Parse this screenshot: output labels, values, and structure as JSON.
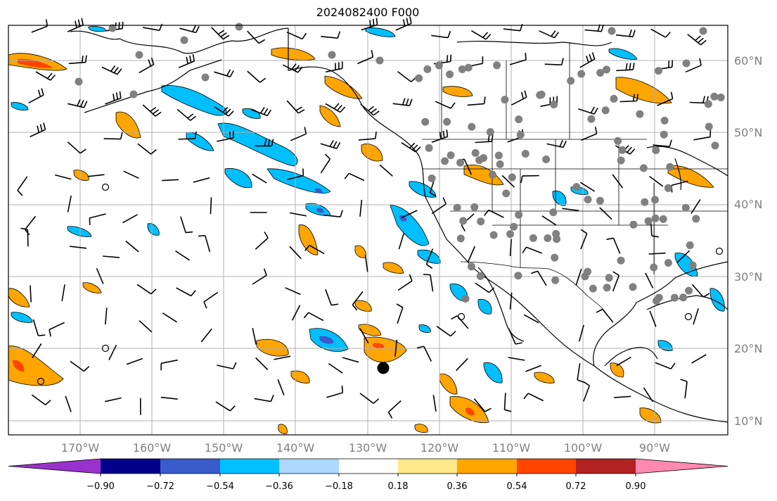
{
  "title": "2024082400 F000",
  "lat_labels": [
    "60°N",
    "50°N",
    "40°N",
    "30°N",
    "20°N",
    "10°N"
  ],
  "lon_labels": [
    "170°W",
    "160°W",
    "150°W",
    "140°W",
    "130°W",
    "120°W",
    "110°W",
    "100°W",
    "90°W"
  ],
  "colorbar": {
    "ticks": [
      "−0.90",
      "−0.72",
      "−0.54",
      "−0.36",
      "−0.18",
      "0.18",
      "0.36",
      "0.54",
      "0.72",
      "0.90"
    ],
    "colors": [
      "#9932cc",
      "#00008b",
      "#3a5bcc",
      "#00bfff",
      "#add8ff",
      "#ffffff",
      "#ffe88a",
      "#ffa500",
      "#ff4500",
      "#b22222",
      "#ff88b0"
    ]
  },
  "colors": {
    "frame": "#000000",
    "grid": "#b0b0b0",
    "coast": "#000000",
    "axis_label": "#808080",
    "station": "#808080"
  }
}
